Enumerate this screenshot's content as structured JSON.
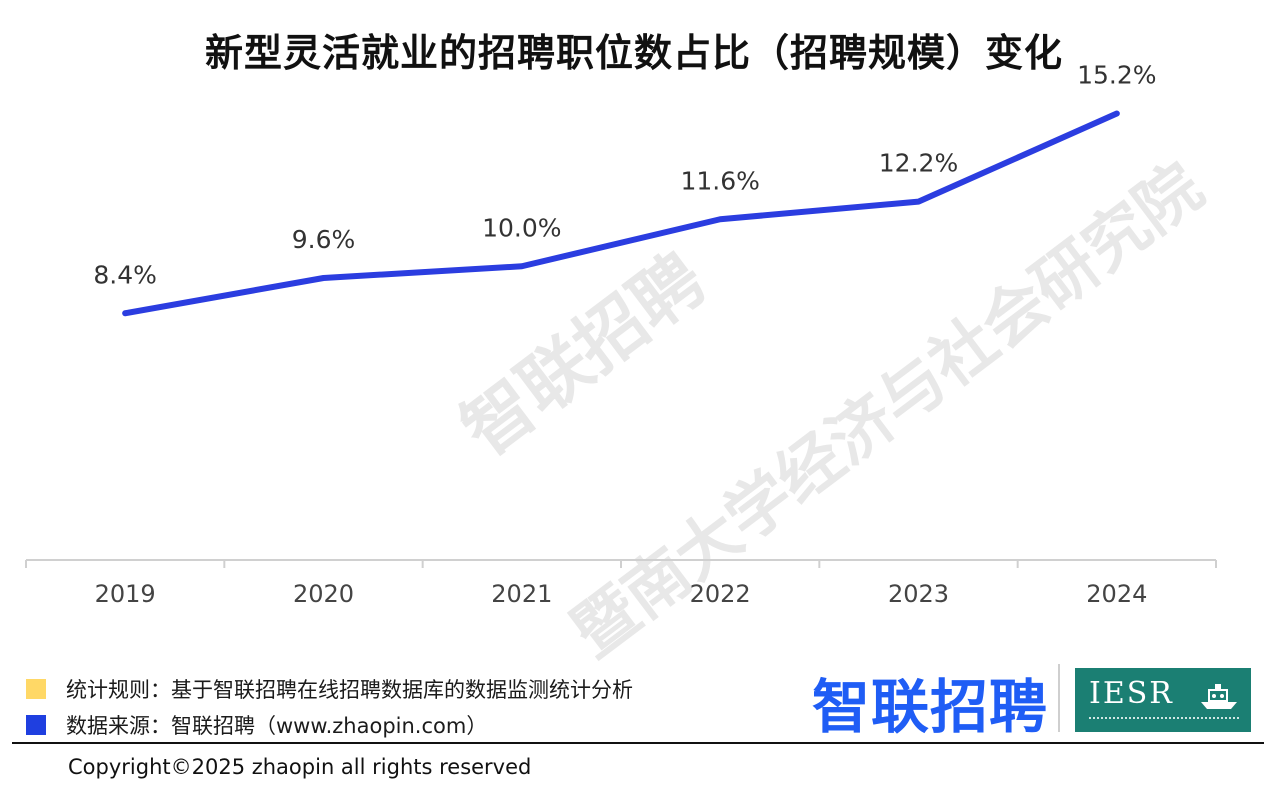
{
  "chart_data": {
    "type": "line",
    "title": "新型灵活就业的招聘职位数占比（招聘规模）变化",
    "categories": [
      "2019",
      "2020",
      "2021",
      "2022",
      "2023",
      "2024"
    ],
    "series": [
      {
        "values": [
          8.4,
          9.6,
          10.0,
          11.6,
          12.2,
          15.2
        ]
      }
    ],
    "data_labels": [
      "8.4%",
      "9.6%",
      "10.0%",
      "11.6%",
      "12.2%",
      "15.2%"
    ],
    "ylim": [
      0,
      16
    ],
    "grid": false,
    "line_color": "#2b3de0"
  },
  "watermark": {
    "line1": "智联招聘",
    "line2": "暨南大学经济与社会研究院"
  },
  "footer": {
    "rule_label": "统计规则：基于智联招聘在线招聘数据库的数据监测统计分析",
    "source_label": "数据来源：智联招聘（www.zhaopin.com）",
    "rule_color": "#ffd866",
    "source_color": "#1f3fe0",
    "logo_text": "智联招聘",
    "iesr_text": "IESR",
    "copyright": "Copyright©2025 zhaopin all rights reserved"
  }
}
